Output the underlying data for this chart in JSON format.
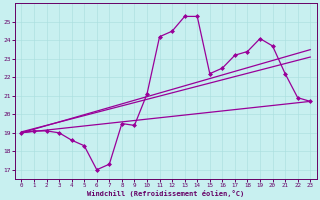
{
  "xlabel": "Windchill (Refroidissement éolien,°C)",
  "xlim": [
    -0.5,
    23.5
  ],
  "ylim": [
    16.5,
    26.0
  ],
  "xticks": [
    0,
    1,
    2,
    3,
    4,
    5,
    6,
    7,
    8,
    9,
    10,
    11,
    12,
    13,
    14,
    15,
    16,
    17,
    18,
    19,
    20,
    21,
    22,
    23
  ],
  "yticks": [
    17,
    18,
    19,
    20,
    21,
    22,
    23,
    24,
    25
  ],
  "background_color": "#c8f0f0",
  "line_color": "#990099",
  "grid_color": "#a8dede",
  "lines": [
    {
      "x": [
        0,
        1,
        2,
        3,
        4,
        5,
        6,
        7,
        8,
        9,
        10,
        11,
        12,
        13,
        14,
        15,
        16,
        17,
        18,
        19,
        20,
        21,
        22,
        23
      ],
      "y": [
        19.0,
        19.1,
        19.1,
        19.0,
        18.6,
        18.3,
        17.0,
        17.3,
        19.5,
        19.4,
        21.1,
        24.2,
        24.5,
        25.3,
        25.3,
        22.2,
        22.5,
        23.2,
        23.4,
        24.1,
        23.7,
        22.2,
        20.9,
        20.7
      ],
      "marker": "D",
      "markersize": 2.0,
      "linewidth": 0.9
    },
    {
      "x": [
        0,
        23
      ],
      "y": [
        19.0,
        23.5
      ],
      "marker": null,
      "markersize": 0,
      "linewidth": 0.9
    },
    {
      "x": [
        0,
        23
      ],
      "y": [
        19.05,
        23.1
      ],
      "marker": null,
      "markersize": 0,
      "linewidth": 0.9
    },
    {
      "x": [
        0,
        23
      ],
      "y": [
        19.0,
        20.7
      ],
      "marker": null,
      "markersize": 0,
      "linewidth": 0.9
    }
  ]
}
